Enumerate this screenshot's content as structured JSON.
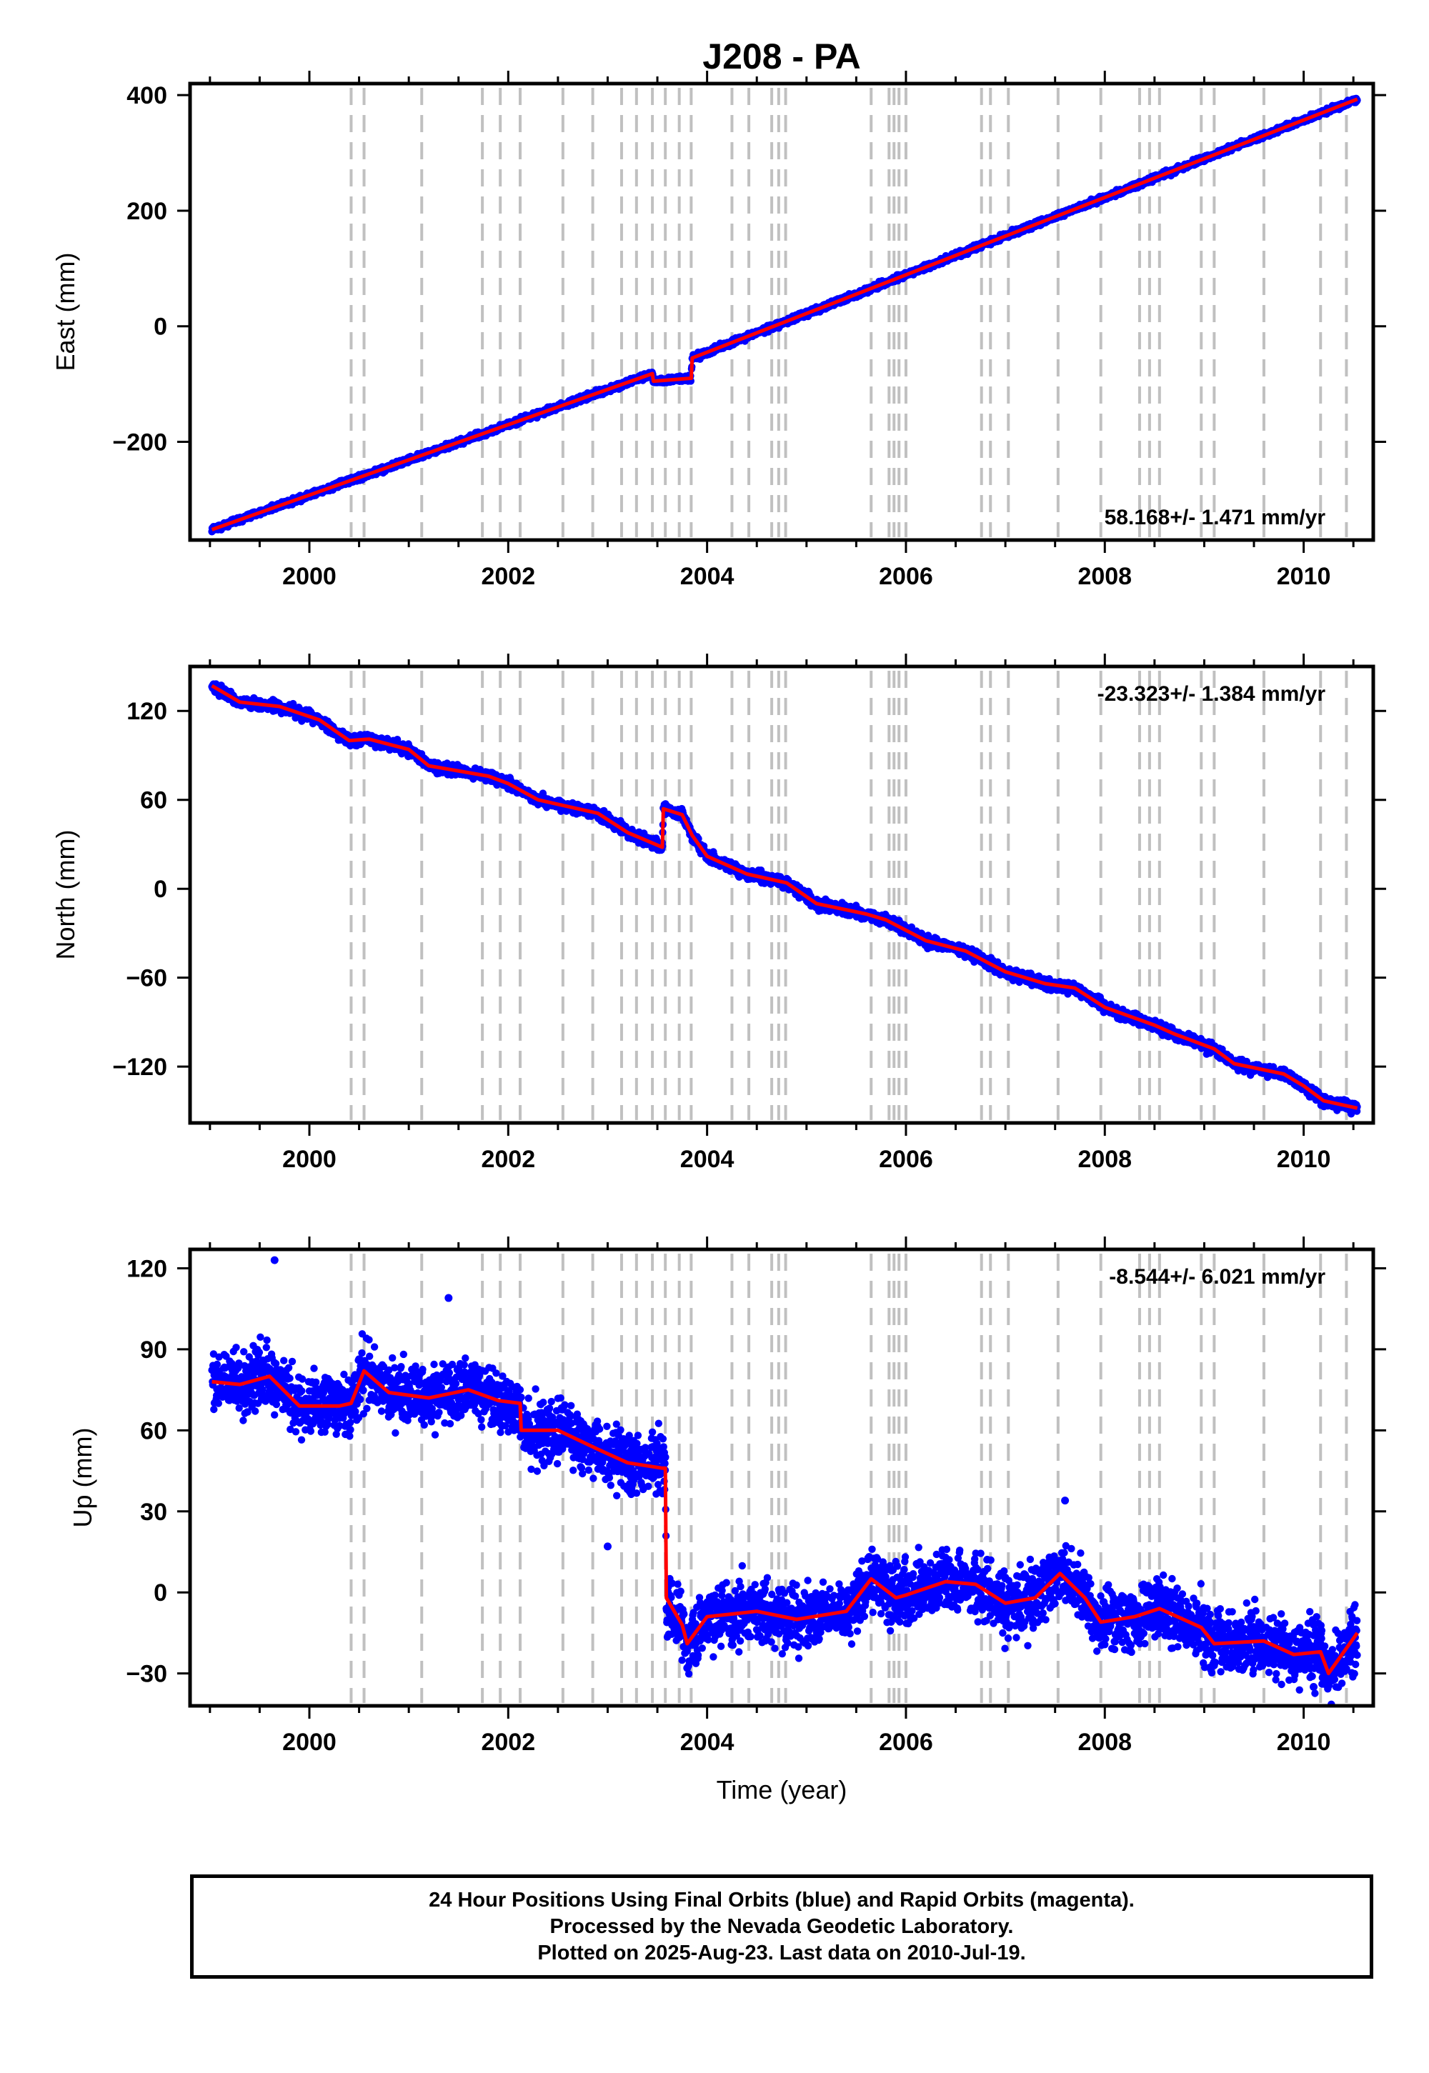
{
  "title": "J208 - PA",
  "x_axis_label": "Time (year)",
  "caption": [
    "24 Hour Positions Using Final Orbits (blue) and Rapid Orbits (magenta).",
    "Processed by the Nevada Geodetic Laboratory.",
    "Plotted on 2025-Aug-23. Last data on 2010-Jul-19."
  ],
  "colors": {
    "points": "#0000ff",
    "model": "#ff0000",
    "events": "#c0c0c0",
    "frame": "#000000"
  },
  "event_years": [
    2000.42,
    2000.55,
    2001.13,
    2001.74,
    2001.92,
    2002.12,
    2002.55,
    2002.85,
    2003.14,
    2003.29,
    2003.45,
    2003.58,
    2003.72,
    2003.84,
    2004.25,
    2004.42,
    2004.65,
    2004.72,
    2004.79,
    2005.65,
    2005.83,
    2005.88,
    2005.93,
    2006.0,
    2006.76,
    2006.85,
    2007.03,
    2007.53,
    2007.96,
    2008.35,
    2008.45,
    2008.55,
    2008.97,
    2009.1,
    2009.6,
    2010.17,
    2010.43
  ],
  "chart_data": [
    {
      "type": "scatter",
      "name": "east",
      "ylabel": "East (mm)",
      "rate_label": "58.168+/- 1.471 mm/yr",
      "xlim": [
        1998.8,
        2010.7
      ],
      "ylim": [
        -370,
        420
      ],
      "x_ticks": [
        2000,
        2002,
        2004,
        2006,
        2008,
        2010
      ],
      "y_ticks": [
        -200,
        0,
        200,
        400
      ],
      "noise": 3.5,
      "model": [
        [
          1999.02,
          -352
        ],
        [
          2003.45,
          -82
        ],
        [
          2003.46,
          -95
        ],
        [
          2003.84,
          -90
        ],
        [
          2003.85,
          -55
        ],
        [
          2010.54,
          393
        ]
      ]
    },
    {
      "type": "scatter",
      "name": "north",
      "ylabel": "North (mm)",
      "rate_label": "-23.323+/- 1.384 mm/yr",
      "xlim": [
        1998.8,
        2010.7
      ],
      "ylim": [
        -158,
        150
      ],
      "x_ticks": [
        2000,
        2002,
        2004,
        2006,
        2008,
        2010
      ],
      "y_ticks": [
        -120,
        -60,
        0,
        60,
        120
      ],
      "noise": 2.5,
      "model": [
        [
          1999.02,
          137
        ],
        [
          1999.3,
          126
        ],
        [
          1999.7,
          123
        ],
        [
          2000.1,
          114
        ],
        [
          2000.4,
          100
        ],
        [
          2000.6,
          101
        ],
        [
          2001.0,
          94
        ],
        [
          2001.2,
          83
        ],
        [
          2001.8,
          76
        ],
        [
          2002.0,
          71
        ],
        [
          2002.3,
          60
        ],
        [
          2002.9,
          51
        ],
        [
          2003.2,
          38
        ],
        [
          2003.55,
          28
        ],
        [
          2003.56,
          54
        ],
        [
          2003.75,
          50
        ],
        [
          2003.85,
          36
        ],
        [
          2004.0,
          22
        ],
        [
          2004.4,
          10
        ],
        [
          2004.8,
          4
        ],
        [
          2005.1,
          -10
        ],
        [
          2005.6,
          -17
        ],
        [
          2005.8,
          -21
        ],
        [
          2006.2,
          -35
        ],
        [
          2006.6,
          -42
        ],
        [
          2007.0,
          -56
        ],
        [
          2007.4,
          -64
        ],
        [
          2007.7,
          -67
        ],
        [
          2008.0,
          -80
        ],
        [
          2008.5,
          -92
        ],
        [
          2008.7,
          -98
        ],
        [
          2009.1,
          -108
        ],
        [
          2009.3,
          -118
        ],
        [
          2009.8,
          -125
        ],
        [
          2010.0,
          -133
        ],
        [
          2010.2,
          -143
        ],
        [
          2010.54,
          -148
        ]
      ]
    },
    {
      "type": "scatter",
      "name": "up",
      "ylabel": "Up (mm)",
      "rate_label": "-8.544+/- 6.021 mm/yr",
      "xlim": [
        1998.8,
        2010.7
      ],
      "ylim": [
        -42,
        127
      ],
      "x_ticks": [
        2000,
        2002,
        2004,
        2006,
        2008,
        2010
      ],
      "y_ticks": [
        -30,
        0,
        30,
        60,
        90,
        120
      ],
      "noise": 8,
      "model": [
        [
          1999.02,
          78
        ],
        [
          1999.3,
          77
        ],
        [
          1999.6,
          80
        ],
        [
          1999.9,
          69
        ],
        [
          2000.3,
          69
        ],
        [
          2000.42,
          70
        ],
        [
          2000.55,
          82
        ],
        [
          2000.8,
          74
        ],
        [
          2001.2,
          72
        ],
        [
          2001.6,
          75
        ],
        [
          2001.9,
          71
        ],
        [
          2002.12,
          70
        ],
        [
          2002.13,
          60
        ],
        [
          2002.5,
          60
        ],
        [
          2002.9,
          53
        ],
        [
          2003.2,
          48
        ],
        [
          2003.55,
          46
        ],
        [
          2003.58,
          46
        ],
        [
          2003.59,
          -2
        ],
        [
          2003.75,
          -12
        ],
        [
          2003.8,
          -19
        ],
        [
          2004.0,
          -9
        ],
        [
          2004.5,
          -7
        ],
        [
          2004.9,
          -10
        ],
        [
          2005.4,
          -7
        ],
        [
          2005.65,
          5
        ],
        [
          2005.9,
          -2
        ],
        [
          2006.0,
          -1
        ],
        [
          2006.4,
          4
        ],
        [
          2006.7,
          3
        ],
        [
          2007.0,
          -4
        ],
        [
          2007.3,
          -2
        ],
        [
          2007.55,
          7
        ],
        [
          2007.8,
          -2
        ],
        [
          2007.96,
          -11
        ],
        [
          2008.3,
          -9
        ],
        [
          2008.55,
          -6
        ],
        [
          2008.97,
          -13
        ],
        [
          2009.1,
          -19
        ],
        [
          2009.6,
          -18
        ],
        [
          2009.9,
          -23
        ],
        [
          2010.17,
          -22
        ],
        [
          2010.25,
          -30
        ],
        [
          2010.54,
          -15
        ]
      ],
      "outliers": [
        [
          1999.65,
          123
        ],
        [
          2001.4,
          109
        ],
        [
          2007.6,
          34
        ],
        [
          2003.0,
          17
        ],
        [
          2003.8,
          -28
        ],
        [
          2010.1,
          -35
        ]
      ]
    }
  ]
}
